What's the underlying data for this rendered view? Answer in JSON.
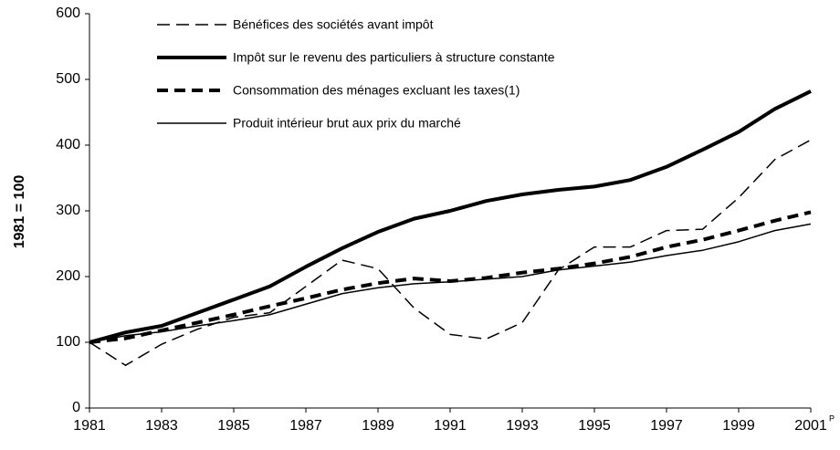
{
  "chart_data": {
    "type": "line",
    "ylabel": "1981 = 100",
    "annotation": "P",
    "x": [
      1981,
      1982,
      1983,
      1984,
      1985,
      1986,
      1987,
      1988,
      1989,
      1990,
      1991,
      1992,
      1993,
      1994,
      1995,
      1996,
      1997,
      1998,
      1999,
      2000,
      2001
    ],
    "xlim": [
      1981,
      2001
    ],
    "xticks": [
      1981,
      1983,
      1985,
      1987,
      1989,
      1991,
      1993,
      1995,
      1997,
      1999,
      2001
    ],
    "ylim": [
      0,
      600
    ],
    "yticks": [
      0,
      100,
      200,
      300,
      400,
      500,
      600
    ],
    "legend": "top-left",
    "series": [
      {
        "name": "Bénéfices des sociétés avant impôt",
        "color": "#000000",
        "line_style": "dashed",
        "line_width": "thin",
        "values": [
          100,
          65,
          97,
          120,
          138,
          145,
          185,
          225,
          212,
          152,
          112,
          105,
          130,
          210,
          245,
          245,
          270,
          272,
          320,
          378,
          408
        ]
      },
      {
        "name": "Impôt sur le revenu des particuliers à structure constante",
        "color": "#000000",
        "line_style": "solid",
        "line_width": "thick",
        "values": [
          100,
          115,
          125,
          145,
          165,
          185,
          215,
          243,
          268,
          288,
          300,
          315,
          325,
          332,
          337,
          347,
          367,
          393,
          420,
          455,
          482
        ]
      },
      {
        "name": "Consommation des ménages excluant les taxes(1)",
        "color": "#000000",
        "line_style": "dashed",
        "line_width": "thick",
        "values": [
          100,
          106,
          118,
          130,
          142,
          155,
          167,
          180,
          190,
          197,
          193,
          198,
          206,
          212,
          220,
          230,
          245,
          256,
          270,
          285,
          298
        ]
      },
      {
        "name": "Produit intérieur brut aux prix du marché",
        "color": "#000000",
        "line_style": "solid",
        "line_width": "thin",
        "values": [
          100,
          110,
          116,
          125,
          133,
          142,
          158,
          174,
          183,
          189,
          192,
          196,
          200,
          210,
          216,
          222,
          232,
          240,
          253,
          270,
          280
        ]
      }
    ]
  }
}
